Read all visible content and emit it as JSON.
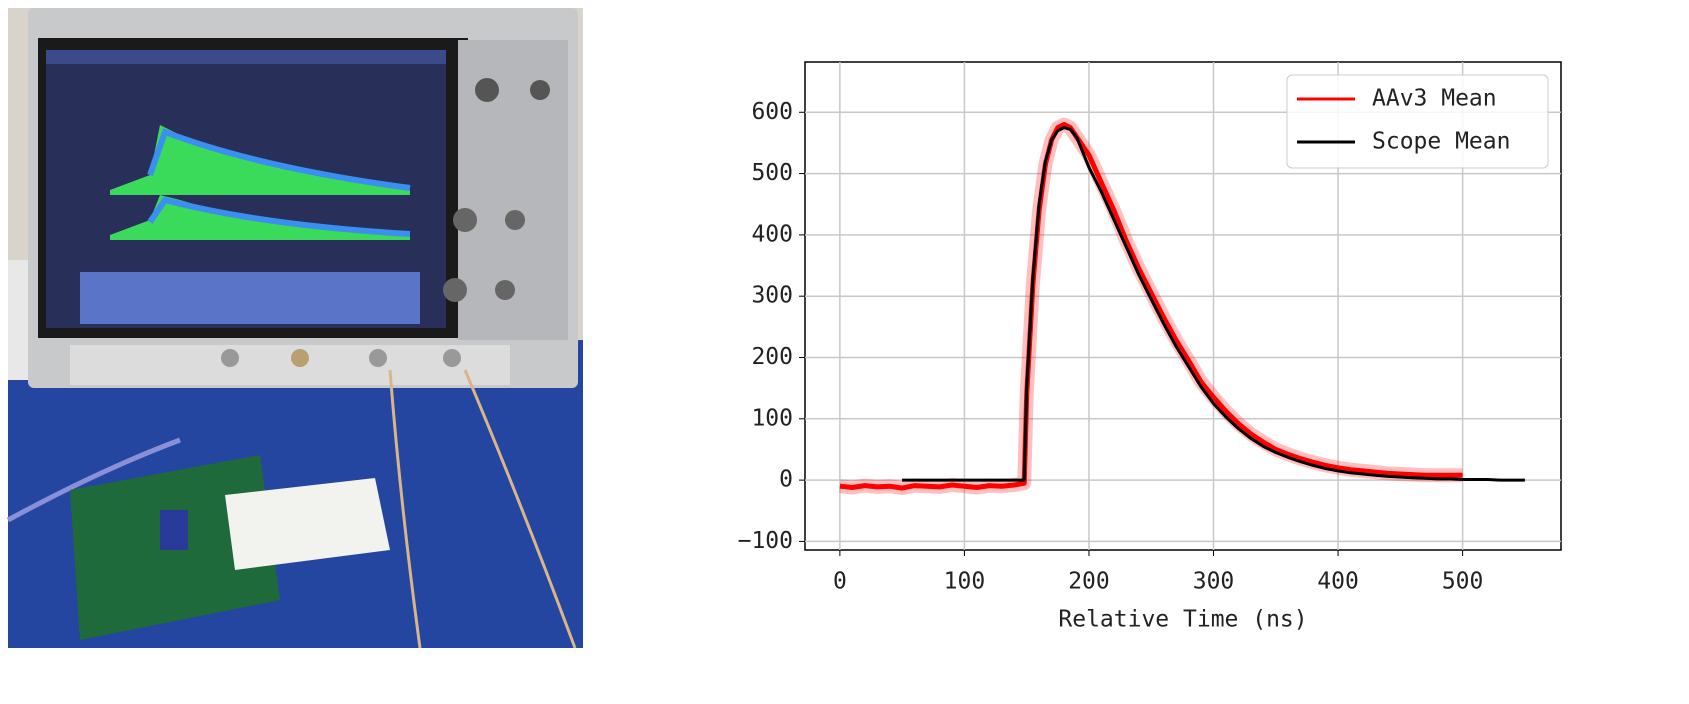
{
  "chart_data": {
    "type": "line",
    "xlabel": "Relative Time (ns)",
    "xlim": [
      -28,
      579
    ],
    "xticks": [
      0,
      100,
      200,
      300,
      400,
      500
    ],
    "ylim": [
      -114,
      682
    ],
    "yticks": [
      {
        "value": -100,
        "label": "−100"
      },
      0,
      100,
      200,
      300,
      400,
      500,
      600
    ],
    "grid": true,
    "legend": "upper right",
    "series": [
      {
        "name": "AAv3 Mean",
        "color": "#ff0000",
        "x": [
          0,
          10,
          20,
          30,
          40,
          50,
          60,
          70,
          80,
          90,
          100,
          110,
          120,
          130,
          140,
          148,
          150,
          155,
          160,
          165,
          170,
          175,
          180,
          185,
          190,
          200,
          210,
          220,
          230,
          240,
          250,
          260,
          270,
          280,
          290,
          300,
          310,
          320,
          330,
          340,
          350,
          360,
          370,
          380,
          390,
          400,
          410,
          420,
          430,
          440,
          450,
          460,
          470,
          480,
          490,
          500
        ],
        "values": [
          -10,
          -12,
          -9,
          -11,
          -10,
          -13,
          -9,
          -10,
          -11,
          -8,
          -10,
          -12,
          -9,
          -10,
          -8,
          -5,
          140,
          320,
          440,
          515,
          555,
          575,
          580,
          575,
          560,
          530,
          485,
          440,
          390,
          345,
          305,
          265,
          228,
          195,
          160,
          135,
          112,
          92,
          75,
          62,
          50,
          42,
          35,
          29,
          24,
          20,
          17,
          15,
          13,
          11,
          10,
          9,
          8,
          8,
          8,
          8
        ]
      },
      {
        "name": "Scope Mean",
        "color": "#000000",
        "x": [
          50,
          60,
          70,
          80,
          90,
          100,
          110,
          120,
          130,
          140,
          148,
          150,
          155,
          160,
          165,
          170,
          175,
          180,
          185,
          190,
          200,
          210,
          220,
          230,
          240,
          250,
          260,
          270,
          280,
          290,
          300,
          310,
          320,
          330,
          340,
          350,
          360,
          370,
          380,
          390,
          400,
          410,
          420,
          430,
          440,
          450,
          460,
          470,
          480,
          490,
          500,
          510,
          520,
          530,
          540,
          550
        ],
        "values": [
          0,
          0,
          0,
          0,
          0,
          0,
          0,
          0,
          0,
          0,
          0,
          150,
          330,
          450,
          520,
          555,
          570,
          575,
          572,
          560,
          510,
          470,
          425,
          380,
          335,
          295,
          255,
          218,
          185,
          152,
          125,
          103,
          84,
          68,
          55,
          45,
          37,
          30,
          24,
          19,
          15,
          12,
          10,
          8,
          6,
          5,
          4,
          3,
          2,
          2,
          1,
          1,
          1,
          0,
          0,
          0
        ]
      }
    ]
  }
}
